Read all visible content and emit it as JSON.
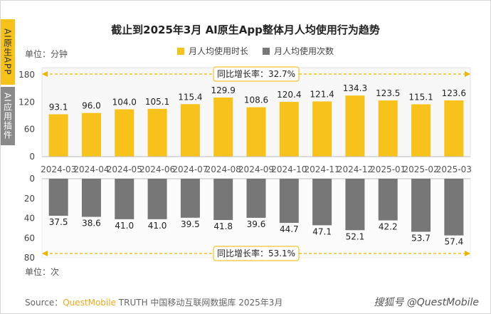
{
  "side_tabs": [
    "AI原生APP",
    "AI应用插件"
  ],
  "title": "截止到2025年3月 AI原生App整体月人均使用行为趋势",
  "unit_top": "单位：分钟",
  "unit_bottom": "单位：次",
  "legend": [
    {
      "label": "月人均使用时长",
      "color": "#f7c21b"
    },
    {
      "label": "月人均使用次数",
      "color": "#777777"
    }
  ],
  "growth_top": "同比增长率：32.7%",
  "growth_bottom": "同比增长率：53.1%",
  "source": {
    "prefix": "Source：",
    "brand": "QuestMobile",
    "rest": " TRUTH 中国移动互联网数据库 2025年3月"
  },
  "watermark": "搜狐号 @QuestMobile",
  "chart_data": {
    "type": "bar",
    "categories": [
      "2024-03",
      "2024-04",
      "2024-05",
      "2024-06",
      "2024-07",
      "2024-08",
      "2024-09",
      "2024-10",
      "2024-11",
      "2024-12",
      "2025-01",
      "2025-02",
      "2025-03"
    ],
    "series": [
      {
        "name": "月人均使用时长",
        "values": [
          93.1,
          96.0,
          104.0,
          105.1,
          115.4,
          129.9,
          108.6,
          120.4,
          121.4,
          134.3,
          123.5,
          115.1,
          123.6
        ],
        "labels": [
          "93.1",
          "96.0",
          "104.0",
          "105.1",
          "115.4",
          "129.9",
          "108.6",
          "120.4",
          "121.4",
          "134.3",
          "123.5",
          "115.1",
          "123.6"
        ],
        "color": "#f7c21b"
      },
      {
        "name": "月人均使用次数",
        "values": [
          37.5,
          38.6,
          41.0,
          41.0,
          39.5,
          41.8,
          39.6,
          44.7,
          47.1,
          52.1,
          42.2,
          53.7,
          57.4
        ],
        "labels": [
          "37.5",
          "38.6",
          "41.0",
          "41.0",
          "39.5",
          "41.8",
          "39.6",
          "44.7",
          "47.1",
          "52.1",
          "42.2",
          "53.7",
          "57.4"
        ],
        "color": "#777777"
      }
    ],
    "top_axis": {
      "ylim": [
        0,
        180
      ],
      "ticks": [
        "180",
        "120",
        "60",
        "0"
      ]
    },
    "bottom_axis": {
      "ylim": [
        0,
        80
      ],
      "inverted": true,
      "ticks": [
        "0",
        "20",
        "40",
        "60",
        "80"
      ]
    }
  }
}
